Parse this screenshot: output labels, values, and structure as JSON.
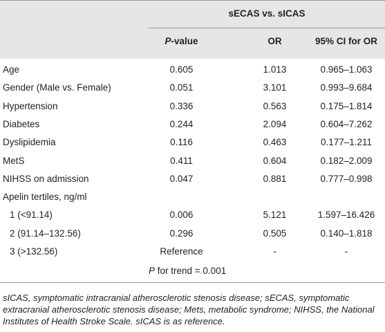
{
  "header": {
    "group": "sECAS vs. sICAS",
    "columns": [
      {
        "italic": "P",
        "text": "-value"
      },
      {
        "text": "OR"
      },
      {
        "text": "95% CI for OR"
      }
    ]
  },
  "table": {
    "rows": [
      [
        "Age",
        "0.605",
        "1.013",
        "0.965–1.063"
      ],
      [
        "Gender (Male vs. Female)",
        "0.051",
        "3.101",
        "0.993–9.684"
      ],
      [
        "Hypertension",
        "0.336",
        "0.563",
        "0.175–1.814"
      ],
      [
        "Diabetes",
        "0.244",
        "2.094",
        "0.604–7.262"
      ],
      [
        "Dyslipidemia",
        "0.116",
        "0.463",
        "0.177–1.211"
      ],
      [
        "MetS",
        "0.411",
        "0.604",
        "0.182–2.009"
      ],
      [
        "NIHSS on admission",
        "0.047",
        "0.881",
        "0.777–0.998"
      ],
      [
        "Apelin tertiles, ng/ml"
      ],
      [
        "1 (<91.14)",
        "0.006",
        "5.121",
        "1.597–16.426"
      ],
      [
        "2 (91.14–132.56)",
        "0.296",
        "0.505",
        "0.140–1.818"
      ],
      [
        "3 (>132.56)",
        "Reference",
        "-",
        "-"
      ]
    ],
    "indented_rows": [
      8,
      9,
      10
    ],
    "trend": {
      "italic": "P",
      "text": " for trend = 0.001"
    }
  },
  "footnote": "sICAS, symptomatic intracranial atherosclerotic stenosis disease; sECAS, symptomatic extracranial atherosclerotic stenosis disease; Mets, metabolic syndrome; NIHSS, the National Institutes of Health Stroke Scale. sICAS is as reference."
}
